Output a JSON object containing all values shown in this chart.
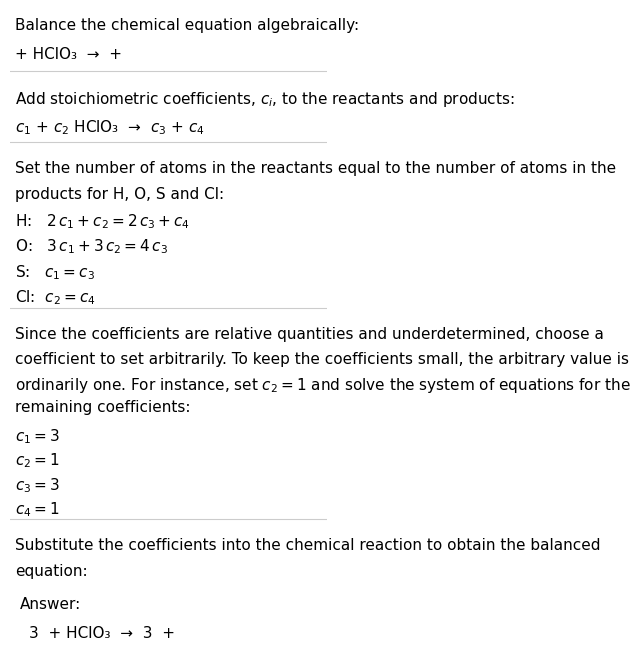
{
  "title_text": "Balance the chemical equation algebraically:",
  "section1_eq": "+ HClO₃  →  +",
  "section2_header": "Add stoichiometric coefficients, $c_i$, to the reactants and products:",
  "section2_eq": "$c_1$ + $c_2$ HClO₃  →  $c_3$ + $c_4$",
  "section3_header": "Set the number of atoms in the reactants equal to the number of atoms in the\nproducts for H, O, S and Cl:",
  "section3_lines": [
    "H:   $2\\,c_1 + c_2 = 2\\,c_3 + c_4$",
    "O:   $3\\,c_1 + 3\\,c_2 = 4\\,c_3$",
    "S:   $c_1 = c_3$",
    "Cl:  $c_2 = c_4$"
  ],
  "section4_header": "Since the coefficients are relative quantities and underdetermined, choose a\ncoefficient to set arbitrarily. To keep the coefficients small, the arbitrary value is\nordinarily one. For instance, set $c_2 = 1$ and solve the system of equations for the\nremaining coefficients:",
  "section4_lines": [
    "$c_1 = 3$",
    "$c_2 = 1$",
    "$c_3 = 3$",
    "$c_4 = 1$"
  ],
  "section5_header": "Substitute the coefficients into the chemical reaction to obtain the balanced\nequation:",
  "answer_label": "Answer:",
  "answer_eq": "3  + HClO₃  →  3  +",
  "bg_color": "#ffffff",
  "text_color": "#000000",
  "line_color": "#cccccc",
  "answer_box_bg": "#e8f8ff",
  "answer_box_border": "#55aadd",
  "font_size": 11,
  "small_font_size": 10
}
